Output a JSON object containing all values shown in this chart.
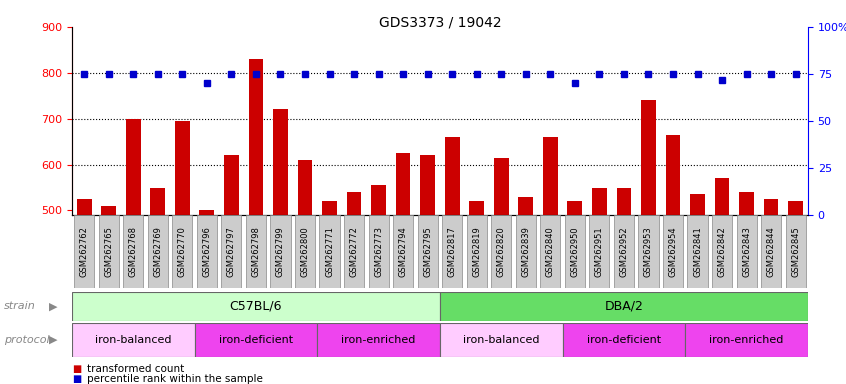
{
  "title": "GDS3373 / 19042",
  "samples": [
    "GSM262762",
    "GSM262765",
    "GSM262768",
    "GSM262769",
    "GSM262770",
    "GSM262796",
    "GSM262797",
    "GSM262798",
    "GSM262799",
    "GSM262800",
    "GSM262771",
    "GSM262772",
    "GSM262773",
    "GSM262794",
    "GSM262795",
    "GSM262817",
    "GSM262819",
    "GSM262820",
    "GSM262839",
    "GSM262840",
    "GSM262950",
    "GSM262951",
    "GSM262952",
    "GSM262953",
    "GSM262954",
    "GSM262841",
    "GSM262842",
    "GSM262843",
    "GSM262844",
    "GSM262845"
  ],
  "transformed_count": [
    525,
    510,
    700,
    550,
    695,
    500,
    620,
    830,
    720,
    610,
    520,
    540,
    555,
    625,
    620,
    660,
    520,
    615,
    530,
    660,
    520,
    550,
    550,
    740,
    665,
    535,
    570,
    540,
    525,
    520
  ],
  "percentile_rank": [
    75,
    75,
    75,
    75,
    75,
    70,
    75,
    75,
    75,
    75,
    75,
    75,
    75,
    75,
    75,
    75,
    75,
    75,
    75,
    75,
    70,
    75,
    75,
    75,
    75,
    75,
    72,
    75,
    75,
    75
  ],
  "bar_color": "#cc0000",
  "dot_color": "#0000cc",
  "ylim_left": [
    490,
    900
  ],
  "ylim_right": [
    0,
    100
  ],
  "yticks_left": [
    500,
    600,
    700,
    800,
    900
  ],
  "yticks_right": [
    0,
    25,
    50,
    75,
    100
  ],
  "grid_values": [
    600,
    700,
    800
  ],
  "strain_groups": [
    {
      "label": "C57BL/6",
      "start": 0,
      "end": 15,
      "color": "#ccffcc"
    },
    {
      "label": "DBA/2",
      "start": 15,
      "end": 30,
      "color": "#66dd66"
    }
  ],
  "protocol_groups": [
    {
      "label": "iron-balanced",
      "start": 0,
      "end": 5,
      "color": "#ffccff"
    },
    {
      "label": "iron-deficient",
      "start": 5,
      "end": 10,
      "color": "#ee44ee"
    },
    {
      "label": "iron-enriched",
      "start": 10,
      "end": 15,
      "color": "#ee44ee"
    },
    {
      "label": "iron-balanced",
      "start": 15,
      "end": 20,
      "color": "#ffccff"
    },
    {
      "label": "iron-deficient",
      "start": 20,
      "end": 25,
      "color": "#ee44ee"
    },
    {
      "label": "iron-enriched",
      "start": 25,
      "end": 30,
      "color": "#ee44ee"
    }
  ],
  "bg_color": "#ffffff",
  "plot_bg": "#ffffff",
  "tick_label_bg": "#cccccc",
  "left_panel_bg": "#e0e0e0"
}
